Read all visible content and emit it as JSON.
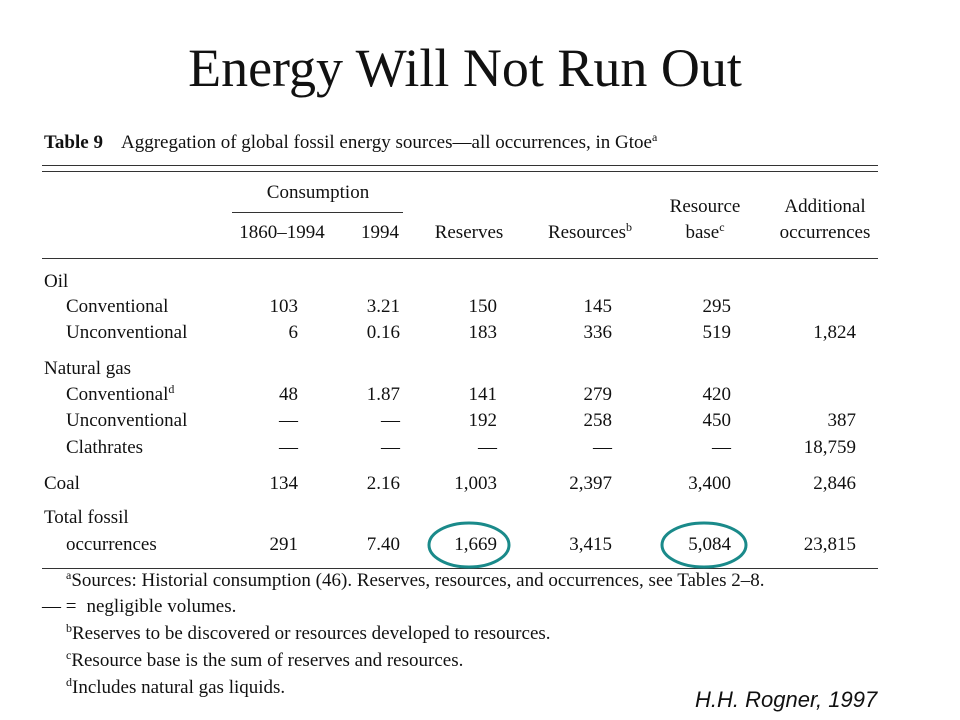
{
  "title": "Energy Will Not Run Out",
  "table": {
    "label": "Table 9",
    "caption": "Aggregation of global fossil energy sources—all occurrences, in Gtoe",
    "caption_note": "a",
    "group_header": "Consumption",
    "columns": [
      {
        "lines": [
          "1860–1994"
        ]
      },
      {
        "lines": [
          "1994"
        ]
      },
      {
        "lines": [
          "Reserves"
        ]
      },
      {
        "lines": [
          "Resources"
        ],
        "note": "b"
      },
      {
        "lines": [
          "Resource",
          "base"
        ],
        "note": "c"
      },
      {
        "lines": [
          "Additional",
          "occurrences"
        ]
      }
    ],
    "rows": [
      {
        "label": "Oil"
      },
      {
        "label": "Conventional",
        "cells": [
          "103",
          "3.21",
          "150",
          "145",
          "295",
          null
        ]
      },
      {
        "label": "Unconventional",
        "cells": [
          "6",
          "0.16",
          "183",
          "336",
          "519",
          "1,824"
        ]
      },
      {
        "label": "Natural gas"
      },
      {
        "label": "Conventional",
        "note": "d",
        "cells": [
          "48",
          "1.87",
          "141",
          "279",
          "420",
          null
        ]
      },
      {
        "label": "Unconventional",
        "cells": [
          "—",
          "—",
          "192",
          "258",
          "450",
          "387"
        ]
      },
      {
        "label": "Clathrates",
        "cells": [
          "—",
          "—",
          "—",
          "—",
          "—",
          "18,759"
        ]
      },
      {
        "label": "Coal",
        "cells": [
          "134",
          "2.16",
          "1,003",
          "2,397",
          "3,400",
          "2,846"
        ]
      },
      {
        "label": "Total fossil"
      },
      {
        "label": "occurrences",
        "cells": [
          "291",
          "7.40",
          "1,669",
          "3,415",
          "5,084",
          "23,815"
        ]
      }
    ],
    "footnotes": [
      {
        "mark": "a",
        "text": "Sources: Historial consumption (46). Reserves, resources, and occurrences, see Tables 2–8."
      },
      {
        "mark": "— =",
        "text": "negligible volumes."
      },
      {
        "mark": "b",
        "text": "Reserves to be discovered or resources developed to resources."
      },
      {
        "mark": "c",
        "text": "Resource base is the sum of reserves and resources."
      },
      {
        "mark": "d",
        "text": "Includes natural gas liquids."
      }
    ]
  },
  "attribution": "H.H. Rogner, 1997"
}
